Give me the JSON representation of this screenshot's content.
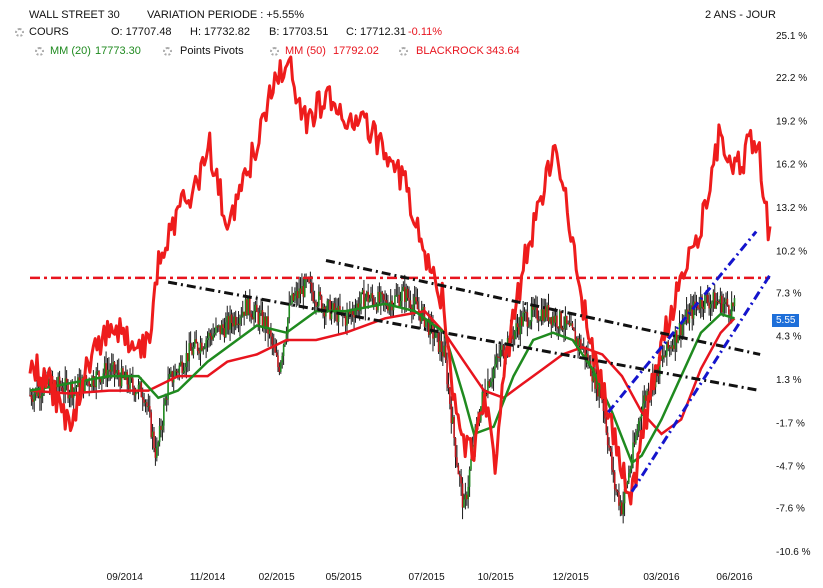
{
  "header": {
    "instrument": "WALL STREET 30",
    "variation_label": "VARIATION PERIODE : +5.55%",
    "period_label": "2 ANS - JOUR",
    "cours_label": "COURS",
    "open": "O: 17707.48",
    "high": "H: 17732.82",
    "low": "B: 17703.51",
    "close": "C: 17712.31",
    "change": "-0.11%",
    "mm20": "MM (20)",
    "mm20_value": "17773.30",
    "pivots": "Points Pivots",
    "mm50": "MM (50)",
    "mm50_value": "17792.02",
    "blackrock": "BLACKROCK",
    "blackrock_value": "343.64"
  },
  "colors": {
    "candles": "#1a1a1a",
    "mm20": "#1f8a1f",
    "mm50": "#e8141e",
    "blackrock": "#ee1c1c",
    "badge": "#1e6fd9",
    "trend_black": "#111111",
    "trend_blue": "#1414cc"
  },
  "last_value_badge": "5.55",
  "chart_data": {
    "type": "line",
    "title": "WALL STREET 30",
    "y_unit": "%",
    "ylim": [
      -10.6,
      25.1
    ],
    "yticks": [
      "25.1 %",
      "22.2 %",
      "19.2 %",
      "16.2 %",
      "13.2 %",
      "10.2 %",
      "7.3 %",
      "4.3 %",
      "1.3 %",
      "-1.7 %",
      "-4.7 %",
      "-7.6 %",
      "-10.6 %"
    ],
    "yticks_values": [
      25.1,
      22.2,
      19.2,
      16.2,
      13.2,
      10.2,
      7.3,
      4.3,
      1.3,
      -1.7,
      -4.7,
      -7.6,
      -10.6
    ],
    "xticks": [
      "09/2014",
      "11/2014",
      "02/2015",
      "05/2015",
      "07/2015",
      "10/2015",
      "12/2015",
      "03/2016",
      "06/2016"
    ],
    "xticks_values": [
      5.8,
      10.0,
      13.5,
      16.9,
      21.1,
      24.6,
      28.4,
      33.0,
      36.7
    ],
    "x_unit": "months since 2014-04",
    "series": [
      {
        "name": "COURS",
        "values": [
          [
            1.0,
            0.2
          ],
          [
            2.0,
            1.0
          ],
          [
            3.0,
            0.6
          ],
          [
            4.0,
            1.2
          ],
          [
            5.0,
            2.0
          ],
          [
            6.0,
            1.0
          ],
          [
            6.8,
            0.3
          ],
          [
            7.4,
            -4.0
          ],
          [
            8.0,
            1.0
          ],
          [
            9.0,
            3.0
          ],
          [
            10.0,
            4.2
          ],
          [
            11.0,
            5.0
          ],
          [
            12.0,
            6.4
          ],
          [
            13.0,
            5.0
          ],
          [
            13.6,
            2.0
          ],
          [
            14.2,
            6.5
          ],
          [
            15.0,
            7.8
          ],
          [
            16.0,
            6.2
          ],
          [
            17.0,
            5.5
          ],
          [
            18.0,
            7.0
          ],
          [
            19.0,
            6.5
          ],
          [
            20.0,
            7.2
          ],
          [
            21.0,
            5.5
          ],
          [
            22.0,
            3.0
          ],
          [
            22.6,
            -4.0
          ],
          [
            23.0,
            -7.8
          ],
          [
            23.5,
            -3.0
          ],
          [
            24.0,
            0.5
          ],
          [
            25.0,
            3.5
          ],
          [
            26.0,
            5.5
          ],
          [
            27.0,
            6.0
          ],
          [
            28.0,
            5.2
          ],
          [
            29.0,
            3.5
          ],
          [
            30.0,
            0.0
          ],
          [
            30.6,
            -6.0
          ],
          [
            31.0,
            -7.6
          ],
          [
            31.6,
            -3.5
          ],
          [
            32.0,
            -0.5
          ],
          [
            33.0,
            2.5
          ],
          [
            34.0,
            5.0
          ],
          [
            35.0,
            6.8
          ],
          [
            36.0,
            6.6
          ],
          [
            36.7,
            6.2
          ]
        ]
      },
      {
        "name": "MM (20)",
        "values": [
          [
            1.0,
            0.5
          ],
          [
            3.0,
            1.0
          ],
          [
            5.0,
            1.5
          ],
          [
            6.5,
            1.5
          ],
          [
            7.5,
            0.0
          ],
          [
            8.5,
            0.5
          ],
          [
            10.0,
            2.5
          ],
          [
            11.5,
            4.0
          ],
          [
            12.5,
            5.0
          ],
          [
            14.0,
            4.5
          ],
          [
            15.5,
            6.0
          ],
          [
            17.0,
            6.0
          ],
          [
            19.0,
            6.5
          ],
          [
            20.5,
            6.0
          ],
          [
            22.0,
            4.5
          ],
          [
            23.0,
            0.0
          ],
          [
            23.5,
            -2.5
          ],
          [
            24.5,
            -2.0
          ],
          [
            25.5,
            1.5
          ],
          [
            26.5,
            4.0
          ],
          [
            27.5,
            4.5
          ],
          [
            28.5,
            4.0
          ],
          [
            29.5,
            2.0
          ],
          [
            30.5,
            -1.0
          ],
          [
            31.5,
            -4.5
          ],
          [
            32.0,
            -4.0
          ],
          [
            33.0,
            -1.5
          ],
          [
            34.0,
            1.5
          ],
          [
            35.0,
            4.5
          ],
          [
            36.0,
            5.8
          ],
          [
            36.7,
            5.5
          ]
        ]
      },
      {
        "name": "MM (50)",
        "values": [
          [
            1.0,
            0.5
          ],
          [
            3.0,
            0.3
          ],
          [
            5.0,
            0.5
          ],
          [
            7.0,
            0.5
          ],
          [
            8.5,
            1.5
          ],
          [
            10.0,
            1.5
          ],
          [
            11.0,
            2.5
          ],
          [
            12.5,
            3.0
          ],
          [
            14.0,
            4.0
          ],
          [
            15.5,
            4.0
          ],
          [
            17.0,
            4.5
          ],
          [
            19.0,
            5.5
          ],
          [
            21.0,
            6.0
          ],
          [
            22.0,
            4.5
          ],
          [
            23.0,
            2.5
          ],
          [
            24.0,
            0.5
          ],
          [
            25.0,
            0.0
          ],
          [
            26.0,
            1.0
          ],
          [
            27.0,
            2.0
          ],
          [
            28.0,
            3.0
          ],
          [
            29.0,
            3.5
          ],
          [
            30.0,
            3.0
          ],
          [
            31.0,
            1.5
          ],
          [
            32.0,
            -1.0
          ],
          [
            33.0,
            -2.5
          ],
          [
            34.0,
            -1.5
          ],
          [
            35.0,
            2.0
          ],
          [
            36.0,
            4.5
          ],
          [
            36.7,
            5.5
          ]
        ]
      },
      {
        "name": "BLACKROCK",
        "values": [
          [
            1.0,
            2.5
          ],
          [
            2.0,
            1.0
          ],
          [
            3.0,
            -2.0
          ],
          [
            4.0,
            2.5
          ],
          [
            5.0,
            5.0
          ],
          [
            6.0,
            4.0
          ],
          [
            7.0,
            3.5
          ],
          [
            7.5,
            9.0
          ],
          [
            8.5,
            13.0
          ],
          [
            9.5,
            15.0
          ],
          [
            10.0,
            18.0
          ],
          [
            11.0,
            12.0
          ],
          [
            12.5,
            17.5
          ],
          [
            13.0,
            20.0
          ],
          [
            13.5,
            22.0
          ],
          [
            14.0,
            23.5
          ],
          [
            15.0,
            19.0
          ],
          [
            16.0,
            21.0
          ],
          [
            17.0,
            19.5
          ],
          [
            18.0,
            19.0
          ],
          [
            19.0,
            17.0
          ],
          [
            20.0,
            15.0
          ],
          [
            21.0,
            10.0
          ],
          [
            22.0,
            6.5
          ],
          [
            22.5,
            0.0
          ],
          [
            23.0,
            -3.0
          ],
          [
            23.5,
            -4.0
          ],
          [
            24.0,
            0.5
          ],
          [
            24.6,
            -5.0
          ],
          [
            25.0,
            1.5
          ],
          [
            25.5,
            5.5
          ],
          [
            26.0,
            9.0
          ],
          [
            27.0,
            14.5
          ],
          [
            27.5,
            17.0
          ],
          [
            28.0,
            15.0
          ],
          [
            28.5,
            11.0
          ],
          [
            29.0,
            6.5
          ],
          [
            29.5,
            3.0
          ],
          [
            30.0,
            0.5
          ],
          [
            31.0,
            -5.0
          ],
          [
            31.5,
            -7.0
          ],
          [
            32.0,
            -3.0
          ],
          [
            33.0,
            4.0
          ],
          [
            34.0,
            8.0
          ],
          [
            35.0,
            12.0
          ],
          [
            35.5,
            15.0
          ],
          [
            36.0,
            18.5
          ],
          [
            36.5,
            16.5
          ],
          [
            37.0,
            16.0
          ],
          [
            37.5,
            18.0
          ],
          [
            38.0,
            16.5
          ],
          [
            38.5,
            11.0
          ]
        ]
      }
    ],
    "hline": 8.3,
    "annotations": [
      {
        "style": "dashdot",
        "color": "black",
        "from": [
          8.0,
          8.0
        ],
        "to": [
          38.0,
          0.5
        ]
      },
      {
        "style": "dashdot",
        "color": "black",
        "from": [
          16.0,
          9.5
        ],
        "to": [
          38.0,
          3.0
        ]
      },
      {
        "style": "dashdot",
        "color": "blue",
        "from": [
          30.3,
          -1.0
        ],
        "to": [
          37.8,
          11.5
        ]
      },
      {
        "style": "dashdot",
        "color": "blue",
        "from": [
          31.5,
          -6.5
        ],
        "to": [
          38.5,
          8.5
        ]
      }
    ]
  }
}
